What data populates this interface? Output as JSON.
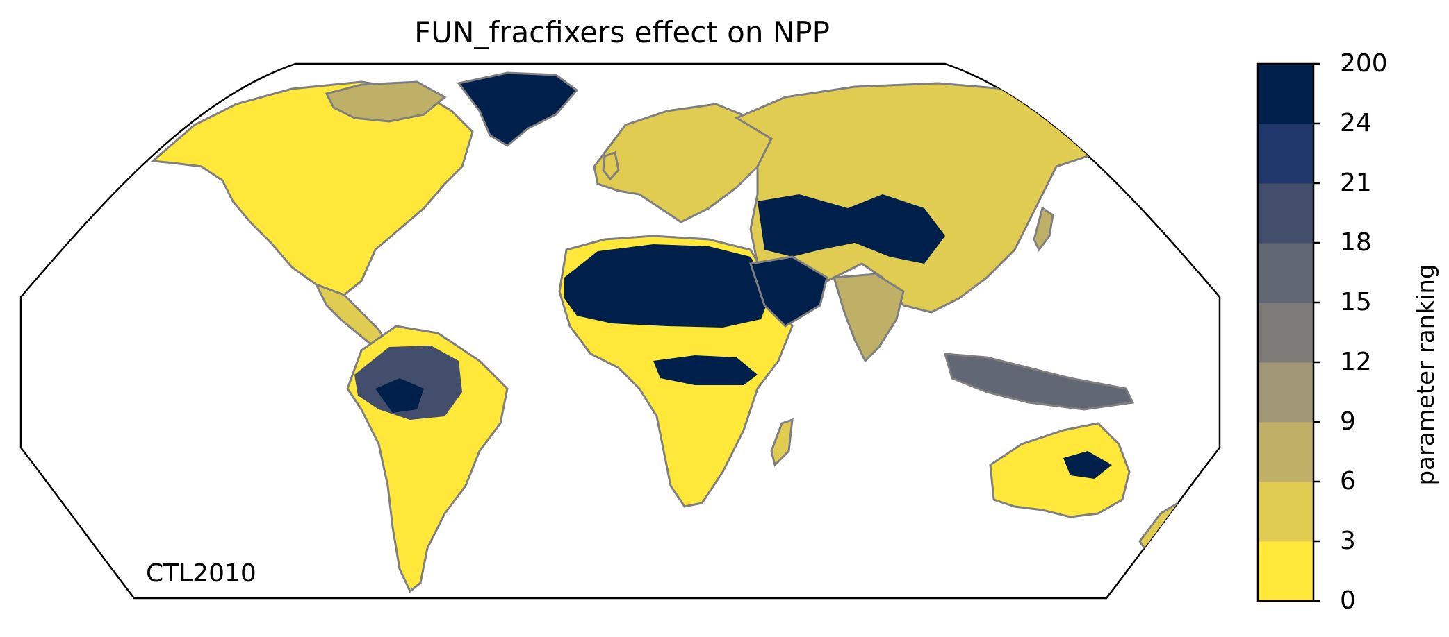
{
  "map": {
    "title": "FUN_fracfixers effect on NPP",
    "run_label": "CTL2010",
    "projection": "Robinson",
    "coastline_color": "#7f7f7f",
    "land_color": "#ffe83a"
  },
  "colorbar": {
    "label": "parameter ranking",
    "ticks": [
      "0",
      "3",
      "6",
      "9",
      "12",
      "15",
      "18",
      "21",
      "24",
      "200"
    ],
    "bins": [
      {
        "from": 0,
        "to": 3,
        "color": "#ffe83a"
      },
      {
        "from": 3,
        "to": 6,
        "color": "#e1cc52"
      },
      {
        "from": 6,
        "to": 9,
        "color": "#bfb068"
      },
      {
        "from": 9,
        "to": 12,
        "color": "#a19676"
      },
      {
        "from": 12,
        "to": 15,
        "color": "#7c7b78"
      },
      {
        "from": 15,
        "to": 18,
        "color": "#626774"
      },
      {
        "from": 18,
        "to": 21,
        "color": "#434d6c"
      },
      {
        "from": 21,
        "to": 24,
        "color": "#1f376a"
      },
      {
        "from": 24,
        "to": 200,
        "color": "#00204c"
      }
    ]
  },
  "regions": [
    {
      "name": "Sahara-Arabia desert",
      "rank_class": "24-200"
    },
    {
      "name": "Greenland",
      "rank_class": "24-200"
    },
    {
      "name": "Central Asia deserts",
      "rank_class": "24-200"
    },
    {
      "name": "Amazon basin",
      "rank_class": "18-24"
    },
    {
      "name": "Sahel belt",
      "rank_class": "24-200"
    },
    {
      "name": "Most other land",
      "rank_class": "0-6"
    }
  ]
}
